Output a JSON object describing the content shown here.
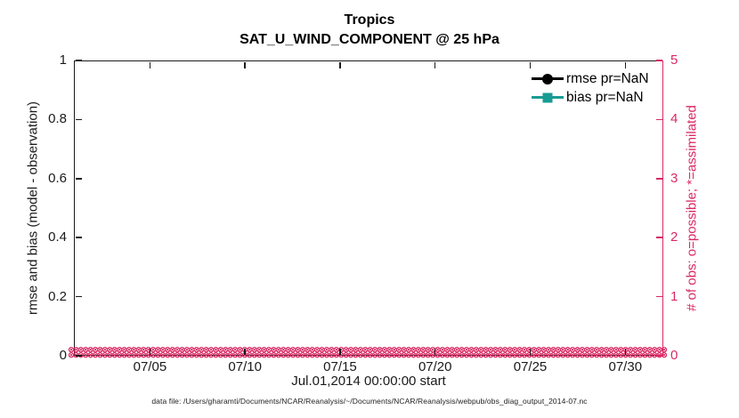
{
  "title": "Tropics",
  "subtitle": "SAT_U_WIND_COMPONENT @ 25 hPa",
  "colors": {
    "rmse": "#000000",
    "bias": "#189b93",
    "obs_count_axis": "#d92963",
    "axis_line": "#1a1a1a"
  },
  "left_axis": {
    "label": "rmse and bias (model - observation)",
    "lim": [
      0,
      1
    ],
    "tick_values": [
      0,
      0.2,
      0.4,
      0.6,
      0.8,
      1
    ],
    "tick_labels": [
      "0",
      "0.2",
      "0.4",
      "0.6",
      "0.8",
      "1"
    ]
  },
  "right_axis": {
    "label": "# of obs: o=possible; *=assimilated",
    "lim": [
      0,
      5
    ],
    "tick_values": [
      0,
      1,
      2,
      3,
      4,
      5
    ],
    "tick_labels": [
      "0",
      "1",
      "2",
      "3",
      "4",
      "5"
    ]
  },
  "x_axis": {
    "label": "Jul.01,2014 00:00:00 start",
    "range_days": [
      0,
      31
    ],
    "tick_days": [
      4,
      9,
      14,
      19,
      24,
      29
    ],
    "tick_labels": [
      "07/05",
      "07/10",
      "07/15",
      "07/20",
      "07/25",
      "07/30"
    ]
  },
  "legend": [
    {
      "label": "rmse pr=NaN",
      "marker": "circle",
      "color": "#000000"
    },
    {
      "label": "bias pr=NaN",
      "marker": "square",
      "color": "#189b93"
    }
  ],
  "footer": "data file: /Users/gharamti/Documents/NCAR/Reanalysis/~/Documents/NCAR/Reanalysis/webpub/obs_diag_output_2014-07.nc",
  "chart_data": {
    "type": "line",
    "title": "Tropics",
    "subtitle": "SAT_U_WIND_COMPONENT @ 25 hPa",
    "xlabel": "Jul.01,2014 00:00:00 start",
    "x_tick_labels": [
      "07/05",
      "07/10",
      "07/15",
      "07/20",
      "07/25",
      "07/30"
    ],
    "y_left": {
      "label": "rmse and bias (model - observation)",
      "lim": [
        0,
        1
      ]
    },
    "y_right": {
      "label": "# of obs: o=possible; *=assimilated",
      "lim": [
        0,
        5
      ]
    },
    "grid": false,
    "legend_position": "top-right-inside-no-box",
    "series": [
      {
        "name": "rmse pr=NaN",
        "axis": "left",
        "marker": "circle",
        "color": "#000000",
        "values": "NaN (nothing plotted)"
      },
      {
        "name": "bias pr=NaN",
        "axis": "left",
        "marker": "square",
        "color": "#189b93",
        "values": "NaN (nothing plotted)"
      },
      {
        "name": "observations possible (o)",
        "axis": "right",
        "marker": "o",
        "color": "#d92963",
        "n_points": 124,
        "constant_value": 0
      },
      {
        "name": "observations assimilated (*)",
        "axis": "right",
        "marker": "*",
        "color": "#d92963",
        "n_points": 124,
        "constant_value": 0
      }
    ]
  }
}
